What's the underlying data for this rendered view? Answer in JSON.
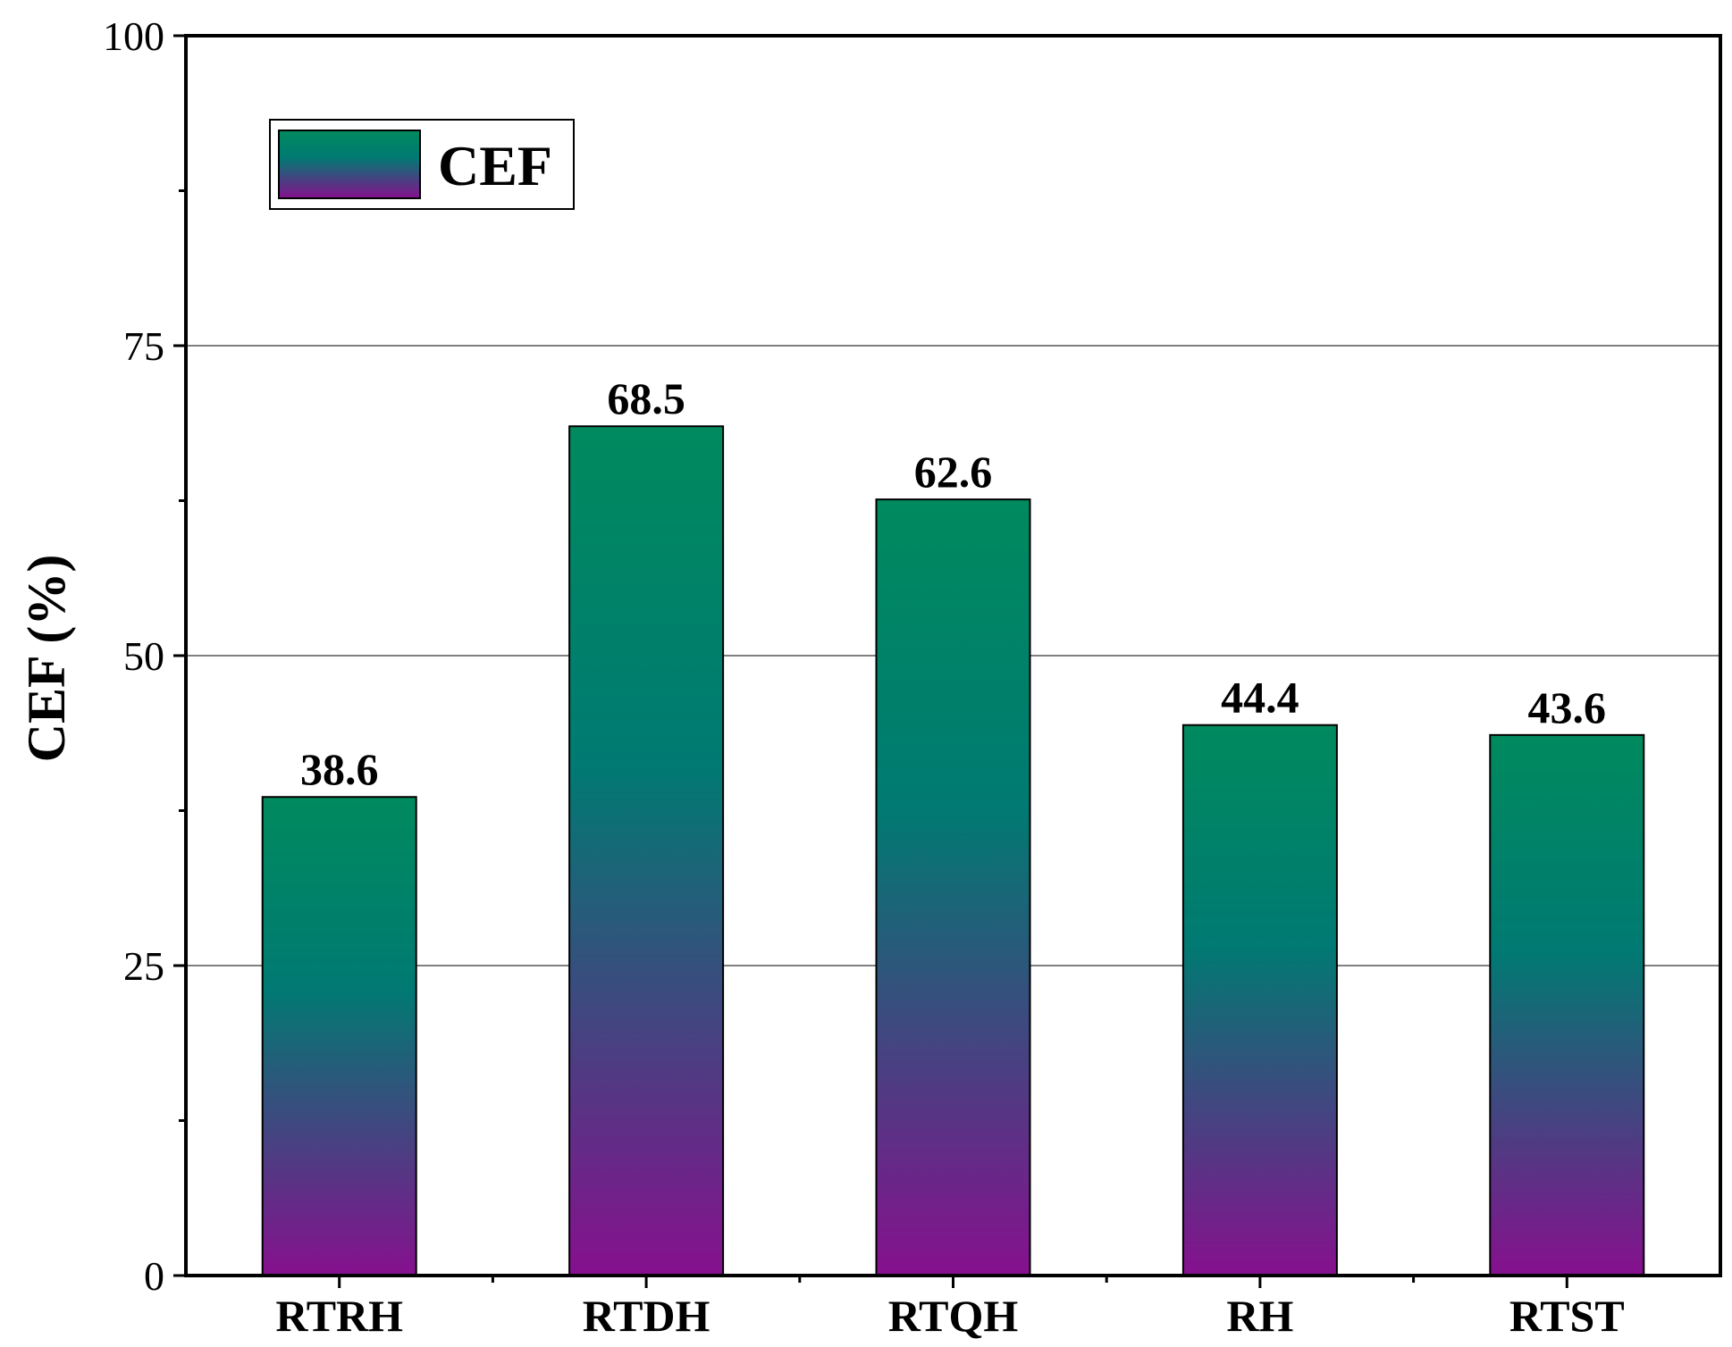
{
  "chart_data": {
    "type": "bar",
    "categories": [
      "RTRH",
      "RTDH",
      "RTQH",
      "RH",
      "RTST"
    ],
    "series": [
      {
        "name": "CEF",
        "values": [
          38.6,
          68.5,
          62.6,
          44.4,
          43.6
        ]
      }
    ],
    "data_labels": [
      "38.6",
      "68.5",
      "62.6",
      "44.4",
      "43.6"
    ],
    "title": "",
    "xlabel": "",
    "ylabel": "CEF (%)",
    "ylim": [
      0,
      100
    ],
    "yticks": [
      0,
      25,
      50,
      75,
      100
    ],
    "grid": true,
    "legend": {
      "placement": "top-left",
      "label": "CEF"
    },
    "colors": {
      "bar_top": "#008a5e",
      "bar_mid": "#007a72",
      "bar_bottom": "#86108e",
      "grid": "#808080",
      "axis": "#000000"
    }
  }
}
